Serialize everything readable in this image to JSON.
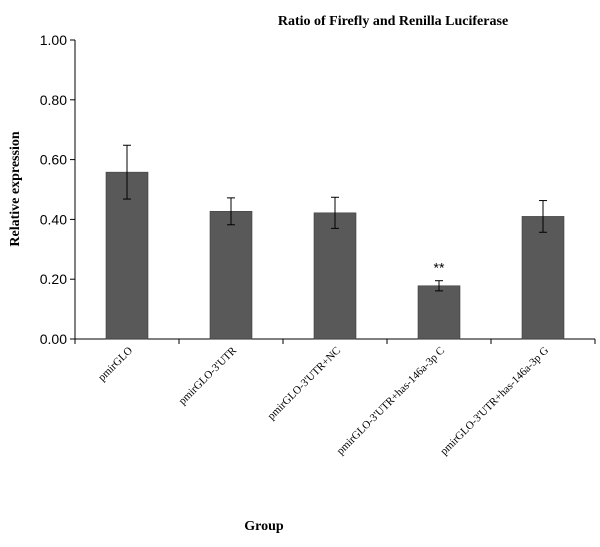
{
  "chart_data": {
    "type": "bar",
    "title": "Ratio of Firefly and Renilla Luciferase",
    "xlabel": "Group",
    "ylabel": "Relative expression",
    "ylim": [
      0,
      1
    ],
    "yticks": [
      "0.00",
      "0.20",
      "0.40",
      "0.60",
      "0.80",
      "1.00"
    ],
    "categories": [
      "pmirGLO",
      "pmirGLO-3'UTR",
      "pmirGLO-3'UTR+NC",
      "pmirGLO-3'UTR+has-146a-3p C",
      "pmirGLO-3'UTR+has-146a-3p G"
    ],
    "values": [
      0.558,
      0.427,
      0.422,
      0.178,
      0.41
    ],
    "errors": [
      0.09,
      0.045,
      0.052,
      0.017,
      0.053
    ],
    "annotations": [
      {
        "category_index": 3,
        "text": "**"
      }
    ],
    "grid": false,
    "bar_color": "#595959"
  }
}
